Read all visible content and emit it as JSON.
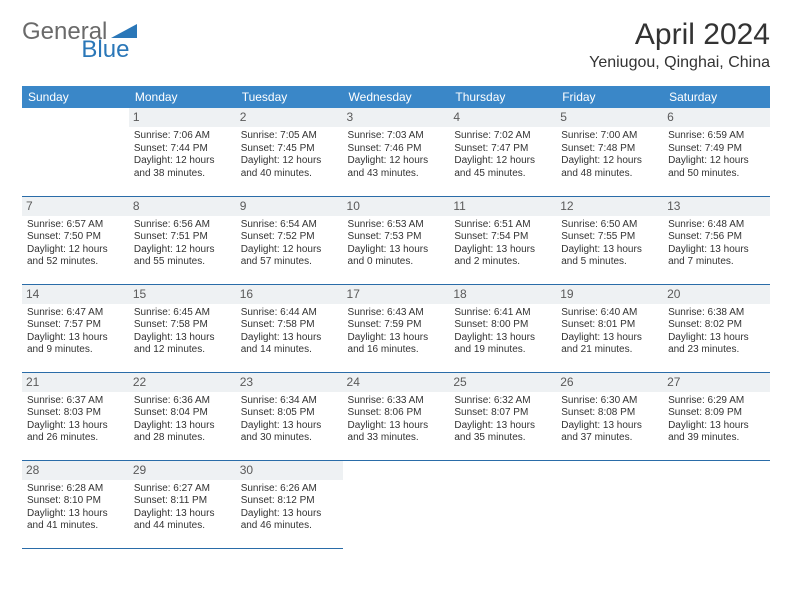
{
  "logo": {
    "text1": "General",
    "text2": "Blue",
    "shape_color": "#2a77b8",
    "text1_color": "#6a6a6a"
  },
  "title": "April 2024",
  "location": "Yeniugou, Qinghai, China",
  "colors": {
    "header_bg": "#3a87c8",
    "header_text": "#ffffff",
    "daynum_bg": "#eef1f3",
    "daynum_text": "#5a5a5a",
    "border": "#2a6ca8",
    "body_text": "#333333"
  },
  "weekdays": [
    "Sunday",
    "Monday",
    "Tuesday",
    "Wednesday",
    "Thursday",
    "Friday",
    "Saturday"
  ],
  "weeks": [
    [
      null,
      {
        "n": "1",
        "sr": "Sunrise: 7:06 AM",
        "ss": "Sunset: 7:44 PM",
        "d1": "Daylight: 12 hours",
        "d2": "and 38 minutes."
      },
      {
        "n": "2",
        "sr": "Sunrise: 7:05 AM",
        "ss": "Sunset: 7:45 PM",
        "d1": "Daylight: 12 hours",
        "d2": "and 40 minutes."
      },
      {
        "n": "3",
        "sr": "Sunrise: 7:03 AM",
        "ss": "Sunset: 7:46 PM",
        "d1": "Daylight: 12 hours",
        "d2": "and 43 minutes."
      },
      {
        "n": "4",
        "sr": "Sunrise: 7:02 AM",
        "ss": "Sunset: 7:47 PM",
        "d1": "Daylight: 12 hours",
        "d2": "and 45 minutes."
      },
      {
        "n": "5",
        "sr": "Sunrise: 7:00 AM",
        "ss": "Sunset: 7:48 PM",
        "d1": "Daylight: 12 hours",
        "d2": "and 48 minutes."
      },
      {
        "n": "6",
        "sr": "Sunrise: 6:59 AM",
        "ss": "Sunset: 7:49 PM",
        "d1": "Daylight: 12 hours",
        "d2": "and 50 minutes."
      }
    ],
    [
      {
        "n": "7",
        "sr": "Sunrise: 6:57 AM",
        "ss": "Sunset: 7:50 PM",
        "d1": "Daylight: 12 hours",
        "d2": "and 52 minutes."
      },
      {
        "n": "8",
        "sr": "Sunrise: 6:56 AM",
        "ss": "Sunset: 7:51 PM",
        "d1": "Daylight: 12 hours",
        "d2": "and 55 minutes."
      },
      {
        "n": "9",
        "sr": "Sunrise: 6:54 AM",
        "ss": "Sunset: 7:52 PM",
        "d1": "Daylight: 12 hours",
        "d2": "and 57 minutes."
      },
      {
        "n": "10",
        "sr": "Sunrise: 6:53 AM",
        "ss": "Sunset: 7:53 PM",
        "d1": "Daylight: 13 hours",
        "d2": "and 0 minutes."
      },
      {
        "n": "11",
        "sr": "Sunrise: 6:51 AM",
        "ss": "Sunset: 7:54 PM",
        "d1": "Daylight: 13 hours",
        "d2": "and 2 minutes."
      },
      {
        "n": "12",
        "sr": "Sunrise: 6:50 AM",
        "ss": "Sunset: 7:55 PM",
        "d1": "Daylight: 13 hours",
        "d2": "and 5 minutes."
      },
      {
        "n": "13",
        "sr": "Sunrise: 6:48 AM",
        "ss": "Sunset: 7:56 PM",
        "d1": "Daylight: 13 hours",
        "d2": "and 7 minutes."
      }
    ],
    [
      {
        "n": "14",
        "sr": "Sunrise: 6:47 AM",
        "ss": "Sunset: 7:57 PM",
        "d1": "Daylight: 13 hours",
        "d2": "and 9 minutes."
      },
      {
        "n": "15",
        "sr": "Sunrise: 6:45 AM",
        "ss": "Sunset: 7:58 PM",
        "d1": "Daylight: 13 hours",
        "d2": "and 12 minutes."
      },
      {
        "n": "16",
        "sr": "Sunrise: 6:44 AM",
        "ss": "Sunset: 7:58 PM",
        "d1": "Daylight: 13 hours",
        "d2": "and 14 minutes."
      },
      {
        "n": "17",
        "sr": "Sunrise: 6:43 AM",
        "ss": "Sunset: 7:59 PM",
        "d1": "Daylight: 13 hours",
        "d2": "and 16 minutes."
      },
      {
        "n": "18",
        "sr": "Sunrise: 6:41 AM",
        "ss": "Sunset: 8:00 PM",
        "d1": "Daylight: 13 hours",
        "d2": "and 19 minutes."
      },
      {
        "n": "19",
        "sr": "Sunrise: 6:40 AM",
        "ss": "Sunset: 8:01 PM",
        "d1": "Daylight: 13 hours",
        "d2": "and 21 minutes."
      },
      {
        "n": "20",
        "sr": "Sunrise: 6:38 AM",
        "ss": "Sunset: 8:02 PM",
        "d1": "Daylight: 13 hours",
        "d2": "and 23 minutes."
      }
    ],
    [
      {
        "n": "21",
        "sr": "Sunrise: 6:37 AM",
        "ss": "Sunset: 8:03 PM",
        "d1": "Daylight: 13 hours",
        "d2": "and 26 minutes."
      },
      {
        "n": "22",
        "sr": "Sunrise: 6:36 AM",
        "ss": "Sunset: 8:04 PM",
        "d1": "Daylight: 13 hours",
        "d2": "and 28 minutes."
      },
      {
        "n": "23",
        "sr": "Sunrise: 6:34 AM",
        "ss": "Sunset: 8:05 PM",
        "d1": "Daylight: 13 hours",
        "d2": "and 30 minutes."
      },
      {
        "n": "24",
        "sr": "Sunrise: 6:33 AM",
        "ss": "Sunset: 8:06 PM",
        "d1": "Daylight: 13 hours",
        "d2": "and 33 minutes."
      },
      {
        "n": "25",
        "sr": "Sunrise: 6:32 AM",
        "ss": "Sunset: 8:07 PM",
        "d1": "Daylight: 13 hours",
        "d2": "and 35 minutes."
      },
      {
        "n": "26",
        "sr": "Sunrise: 6:30 AM",
        "ss": "Sunset: 8:08 PM",
        "d1": "Daylight: 13 hours",
        "d2": "and 37 minutes."
      },
      {
        "n": "27",
        "sr": "Sunrise: 6:29 AM",
        "ss": "Sunset: 8:09 PM",
        "d1": "Daylight: 13 hours",
        "d2": "and 39 minutes."
      }
    ],
    [
      {
        "n": "28",
        "sr": "Sunrise: 6:28 AM",
        "ss": "Sunset: 8:10 PM",
        "d1": "Daylight: 13 hours",
        "d2": "and 41 minutes."
      },
      {
        "n": "29",
        "sr": "Sunrise: 6:27 AM",
        "ss": "Sunset: 8:11 PM",
        "d1": "Daylight: 13 hours",
        "d2": "and 44 minutes."
      },
      {
        "n": "30",
        "sr": "Sunrise: 6:26 AM",
        "ss": "Sunset: 8:12 PM",
        "d1": "Daylight: 13 hours",
        "d2": "and 46 minutes."
      },
      null,
      null,
      null,
      null
    ]
  ]
}
